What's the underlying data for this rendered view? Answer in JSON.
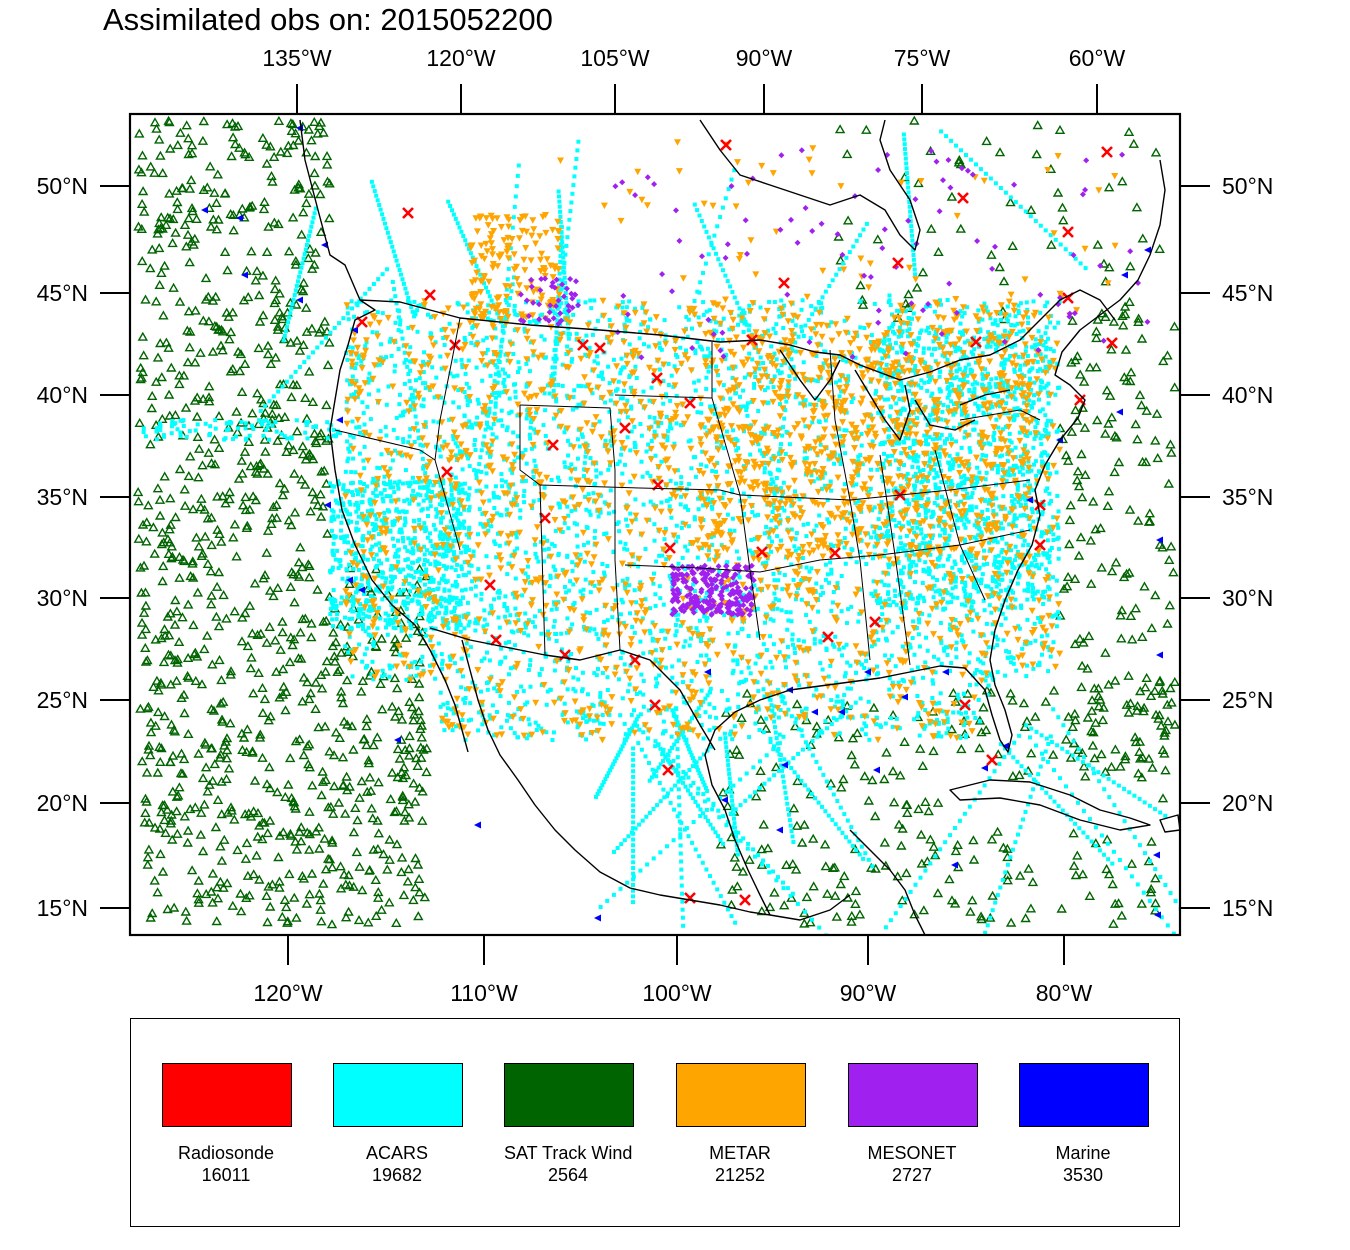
{
  "title": "Assimilated obs on: 2015052200",
  "axes": {
    "lat_ticks": [
      "15°N",
      "20°N",
      "25°N",
      "30°N",
      "35°N",
      "40°N",
      "45°N",
      "50°N"
    ],
    "lon_bottom_ticks": [
      "120°W",
      "110°W",
      "100°W",
      "90°W",
      "80°W"
    ],
    "lon_top_ticks": [
      "135°W",
      "120°W",
      "105°W",
      "90°W",
      "75°W",
      "60°W"
    ]
  },
  "legend": [
    {
      "name": "Radiosonde",
      "count": "16011",
      "color": "#ff0000",
      "marker": "x-mark-icon"
    },
    {
      "name": "ACARS",
      "count": "19682",
      "color": "#00ffff",
      "marker": "square-dot-icon"
    },
    {
      "name": "SAT Track Wind",
      "count": "2564",
      "color": "#006400",
      "marker": "open-triangle-icon"
    },
    {
      "name": "METAR",
      "count": "21252",
      "color": "#ffa500",
      "marker": "down-triangle-icon"
    },
    {
      "name": "MESONET",
      "count": "2727",
      "color": "#a020f0",
      "marker": "diamond-icon"
    },
    {
      "name": "Marine",
      "count": "3530",
      "color": "#0000ff",
      "marker": "left-triangle-icon"
    }
  ]
}
